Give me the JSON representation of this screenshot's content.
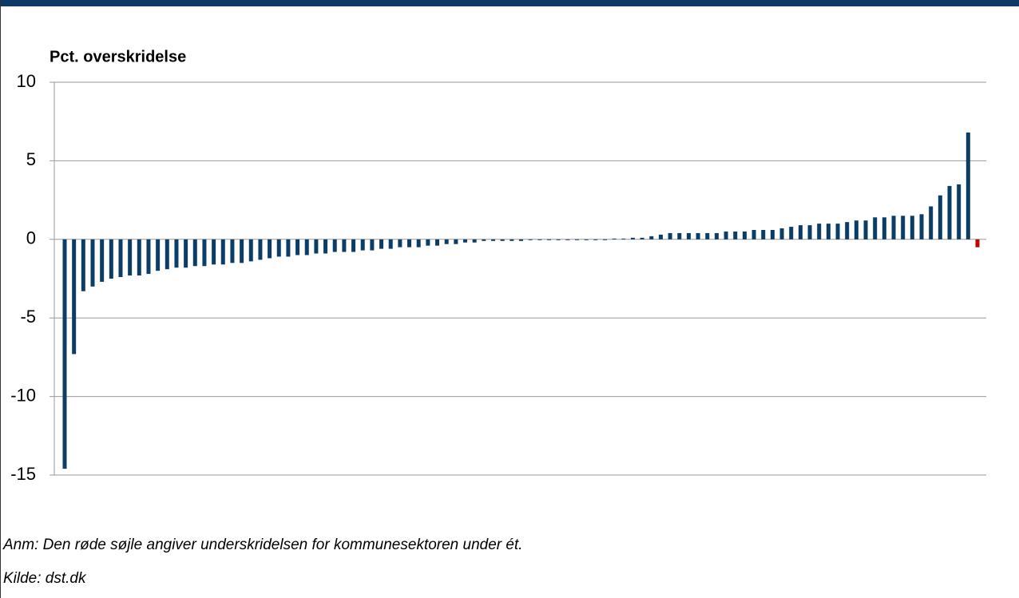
{
  "chart_data": {
    "type": "bar",
    "title": "Pct. overskridelse",
    "notes": [
      "Anm: Den røde søjle angiver underskridelsen for kommunesektoren under ét.",
      "Kilde: dst.dk"
    ],
    "categories": [
      null,
      null,
      null,
      null,
      null,
      null,
      null,
      null,
      null,
      null,
      null,
      null,
      null,
      null,
      null,
      null,
      null,
      null,
      null,
      null,
      null,
      null,
      null,
      null,
      null,
      null,
      null,
      null,
      null,
      null,
      null,
      null,
      null,
      null,
      null,
      null,
      null,
      null,
      null,
      null,
      null,
      null,
      null,
      null,
      null,
      null,
      null,
      null,
      null,
      null,
      null,
      null,
      null,
      null,
      null,
      null,
      null,
      null,
      null,
      null,
      null,
      null,
      null,
      null,
      null,
      null,
      null,
      null,
      null,
      null,
      null,
      null,
      null,
      null,
      null,
      null,
      null,
      null,
      null,
      null,
      null,
      null,
      null,
      null,
      null,
      null,
      null,
      null,
      null,
      null,
      null,
      null,
      null,
      null,
      null,
      null,
      null,
      null,
      null
    ],
    "values": [
      -14.6,
      -7.3,
      -3.3,
      -3.0,
      -2.7,
      -2.5,
      -2.4,
      -2.3,
      -2.3,
      -2.2,
      -2.0,
      -1.9,
      -1.8,
      -1.8,
      -1.7,
      -1.7,
      -1.6,
      -1.6,
      -1.5,
      -1.5,
      -1.4,
      -1.3,
      -1.2,
      -1.1,
      -1.1,
      -1.0,
      -1.0,
      -0.9,
      -0.9,
      -0.8,
      -0.8,
      -0.8,
      -0.7,
      -0.7,
      -0.6,
      -0.6,
      -0.5,
      -0.5,
      -0.5,
      -0.4,
      -0.4,
      -0.3,
      -0.3,
      -0.2,
      -0.2,
      -0.1,
      -0.1,
      -0.1,
      -0.1,
      -0.1,
      -0.05,
      -0.05,
      -0.05,
      -0.05,
      -0.05,
      -0.05,
      -0.05,
      -0.05,
      -0.05,
      0.05,
      0.05,
      0.1,
      0.1,
      0.2,
      0.3,
      0.4,
      0.4,
      0.4,
      0.4,
      0.4,
      0.4,
      0.5,
      0.5,
      0.5,
      0.6,
      0.6,
      0.6,
      0.7,
      0.8,
      0.9,
      0.9,
      1.0,
      1.0,
      1.0,
      1.1,
      1.2,
      1.2,
      1.4,
      1.4,
      1.5,
      1.5,
      1.5,
      1.6,
      2.1,
      2.8,
      3.4,
      3.5,
      6.8,
      -0.5
    ],
    "colors": [
      "#0b3d66",
      "#0b3d66",
      "#0b3d66",
      "#0b3d66",
      "#0b3d66",
      "#0b3d66",
      "#0b3d66",
      "#0b3d66",
      "#0b3d66",
      "#0b3d66",
      "#0b3d66",
      "#0b3d66",
      "#0b3d66",
      "#0b3d66",
      "#0b3d66",
      "#0b3d66",
      "#0b3d66",
      "#0b3d66",
      "#0b3d66",
      "#0b3d66",
      "#0b3d66",
      "#0b3d66",
      "#0b3d66",
      "#0b3d66",
      "#0b3d66",
      "#0b3d66",
      "#0b3d66",
      "#0b3d66",
      "#0b3d66",
      "#0b3d66",
      "#0b3d66",
      "#0b3d66",
      "#0b3d66",
      "#0b3d66",
      "#0b3d66",
      "#0b3d66",
      "#0b3d66",
      "#0b3d66",
      "#0b3d66",
      "#0b3d66",
      "#0b3d66",
      "#0b3d66",
      "#0b3d66",
      "#0b3d66",
      "#0b3d66",
      "#0b3d66",
      "#0b3d66",
      "#0b3d66",
      "#0b3d66",
      "#0b3d66",
      "#0b3d66",
      "#0b3d66",
      "#0b3d66",
      "#0b3d66",
      "#0b3d66",
      "#0b3d66",
      "#0b3d66",
      "#0b3d66",
      "#0b3d66",
      "#0b3d66",
      "#0b3d66",
      "#0b3d66",
      "#0b3d66",
      "#0b3d66",
      "#0b3d66",
      "#0b3d66",
      "#0b3d66",
      "#0b3d66",
      "#0b3d66",
      "#0b3d66",
      "#0b3d66",
      "#0b3d66",
      "#0b3d66",
      "#0b3d66",
      "#0b3d66",
      "#0b3d66",
      "#0b3d66",
      "#0b3d66",
      "#0b3d66",
      "#0b3d66",
      "#0b3d66",
      "#0b3d66",
      "#0b3d66",
      "#0b3d66",
      "#0b3d66",
      "#0b3d66",
      "#0b3d66",
      "#0b3d66",
      "#0b3d66",
      "#0b3d66",
      "#0b3d66",
      "#0b3d66",
      "#0b3d66",
      "#0b3d66",
      "#0b3d66",
      "#0b3d66",
      "#0b3d66",
      "#0b3d66",
      "#c00000"
    ],
    "ylim": [
      -15,
      10
    ],
    "yticks": [
      -15,
      -10,
      -5,
      0,
      5,
      10
    ],
    "grid": true
  }
}
